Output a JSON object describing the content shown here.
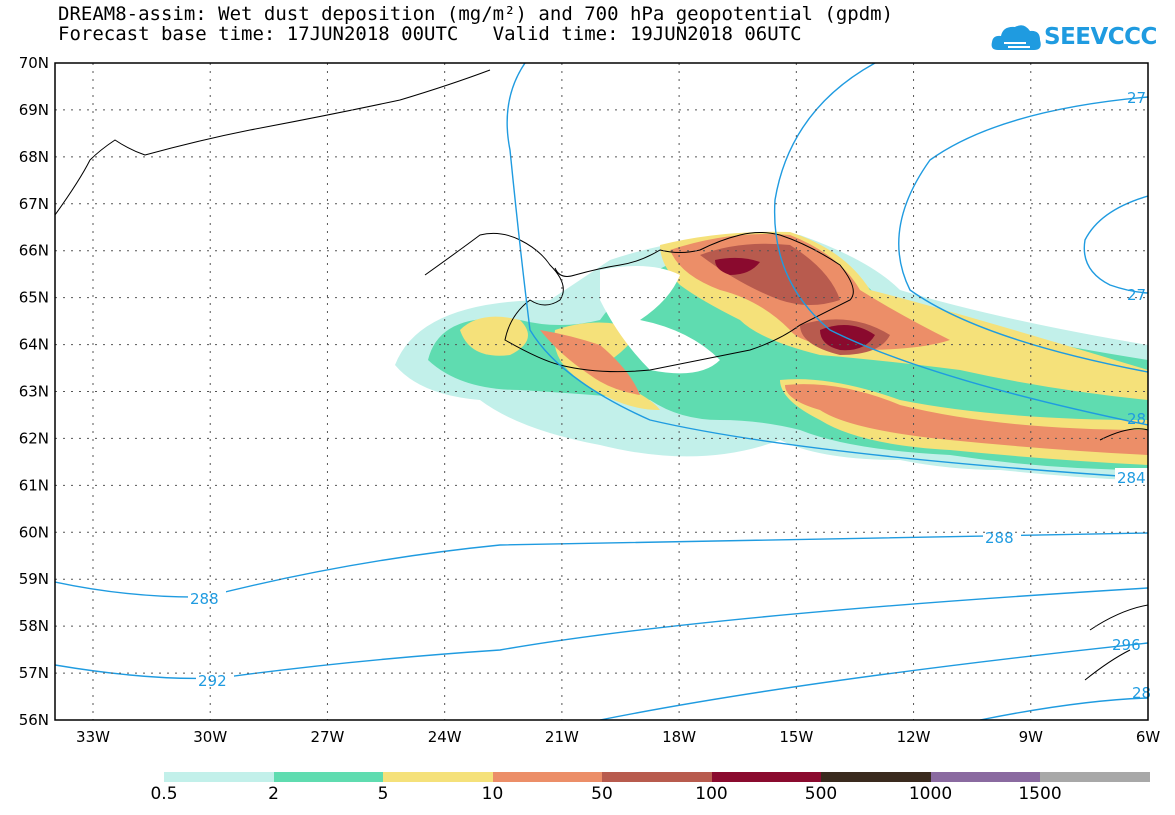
{
  "header": {
    "title_line1": "DREAM8-assim: Wet dust deposition (mg/m²) and 700 hPa geopotential (gpdm)",
    "title_line2": "Forecast base time: 17JUN2018 00UTC   Valid time: 19JUN2018 06UTC",
    "logo_text": "SEEVCCC"
  },
  "map": {
    "lon_labels": [
      "33W",
      "30W",
      "27W",
      "24W",
      "21W",
      "18W",
      "15W",
      "12W",
      "9W",
      "6W"
    ],
    "lat_labels": [
      "70N",
      "69N",
      "68N",
      "67N",
      "66N",
      "65N",
      "64N",
      "63N",
      "62N",
      "61N",
      "60N",
      "59N",
      "58N",
      "57N",
      "56N"
    ],
    "contour_labels": [
      "288",
      "292",
      "288",
      "284",
      "28",
      "27",
      "27",
      "296",
      "28"
    ]
  },
  "colorbar": {
    "labels": [
      "0.5",
      "2",
      "5",
      "10",
      "50",
      "100",
      "500",
      "1000",
      "1500"
    ],
    "colors": [
      "#c2f0ea",
      "#5fdcb0",
      "#f5e17a",
      "#ec8e68",
      "#b85b4e",
      "#8a0a2e",
      "#3a2a1e",
      "#8a6aa0",
      "#a8a8a8"
    ]
  }
}
